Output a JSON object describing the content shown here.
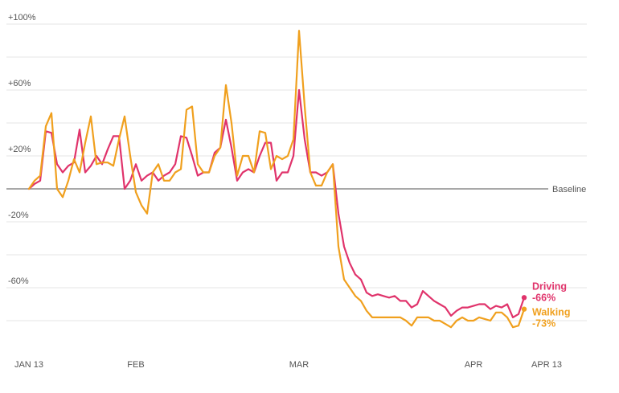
{
  "chart_data": {
    "type": "line",
    "title": "",
    "xlabel": "",
    "ylabel": "",
    "x_ticks": [
      "JAN 13",
      "FEB",
      "MAR",
      "APR",
      "APR 13"
    ],
    "x_tick_days": [
      0,
      19,
      48,
      79,
      92
    ],
    "y_ticks": [
      "+100%",
      "+60%",
      "+20%",
      "-20%",
      "-60%"
    ],
    "y_tick_values": [
      100,
      60,
      20,
      -20,
      -60
    ],
    "ylim": [
      -100,
      100
    ],
    "baseline_label": "Baseline",
    "grid": true,
    "series": [
      {
        "name": "Driving",
        "end_label": "-66%",
        "color": "#e0336b",
        "values": [
          0,
          3,
          5,
          35,
          34,
          15,
          10,
          14,
          16,
          36,
          10,
          14,
          20,
          15,
          24,
          32,
          32,
          0,
          5,
          15,
          5,
          8,
          10,
          5,
          8,
          10,
          15,
          32,
          31,
          20,
          8,
          10,
          10,
          22,
          25,
          42,
          25,
          5,
          10,
          12,
          10,
          20,
          28,
          28,
          5,
          10,
          10,
          20,
          60,
          30,
          10,
          10,
          8,
          10,
          15,
          -15,
          -35,
          -45,
          -52,
          -55,
          -63,
          -65,
          -64,
          -65,
          -66,
          -65,
          -68,
          -68,
          -72,
          -70,
          -62,
          -65,
          -68,
          -70,
          -72,
          -77,
          -74,
          -72,
          -72,
          -71,
          -70,
          -70,
          -73,
          -71,
          -72,
          -70,
          -78,
          -76,
          -66
        ]
      },
      {
        "name": "Walking",
        "end_label": "-73%",
        "color": "#f0a01e",
        "values": [
          0,
          5,
          8,
          38,
          46,
          0,
          -5,
          5,
          18,
          10,
          28,
          44,
          15,
          16,
          16,
          14,
          30,
          44,
          20,
          -2,
          -10,
          -15,
          10,
          15,
          5,
          5,
          10,
          12,
          48,
          50,
          15,
          10,
          10,
          20,
          25,
          63,
          40,
          8,
          20,
          20,
          10,
          35,
          34,
          12,
          20,
          18,
          20,
          30,
          96,
          50,
          10,
          2,
          2,
          10,
          15,
          -35,
          -55,
          -60,
          -65,
          -68,
          -74,
          -78,
          -78,
          -78,
          -78,
          -78,
          -78,
          -80,
          -83,
          -78,
          -78,
          -78,
          -80,
          -80,
          -82,
          -84,
          -80,
          -78,
          -80,
          -80,
          -78,
          -79,
          -80,
          -75,
          -75,
          -78,
          -84,
          -83,
          -73
        ]
      }
    ]
  }
}
